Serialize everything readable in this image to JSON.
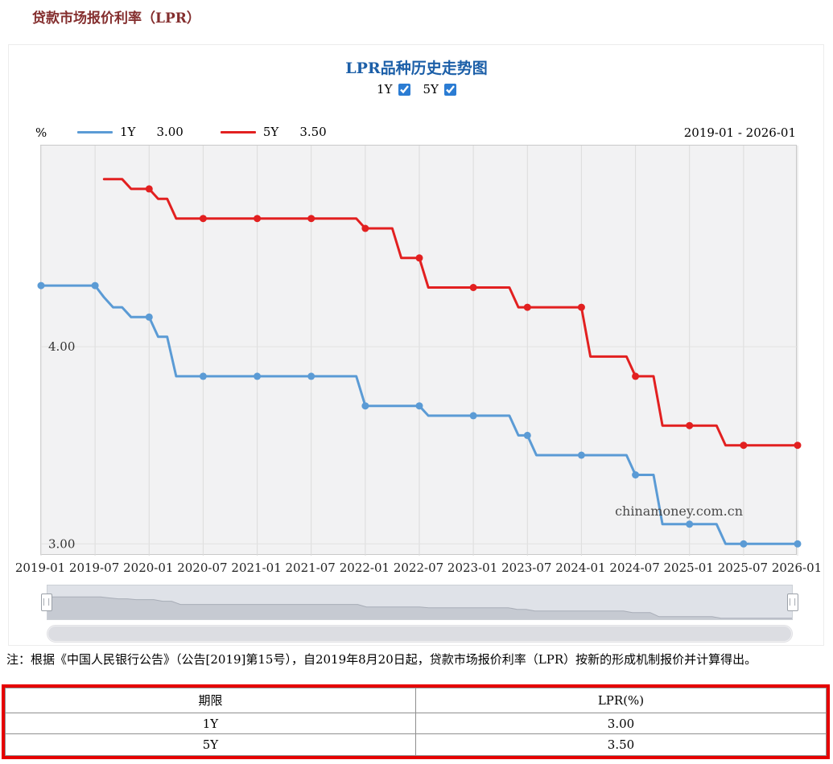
{
  "page": {
    "title": "贷款市场报价利率（LPR）"
  },
  "chart": {
    "title": "LPR品种历史走势图",
    "checkboxes": [
      {
        "label": "1Y",
        "checked": true
      },
      {
        "label": "5Y",
        "checked": true
      }
    ],
    "unit_label": "%",
    "legend": [
      {
        "label": "1Y",
        "value": "3.00",
        "color": "#5b9bd5"
      },
      {
        "label": "5Y",
        "value": "3.50",
        "color": "#e22020"
      }
    ],
    "date_range": "2019-01 - 2026-01",
    "watermark": "chinamoney.com.cn"
  },
  "chart_data": {
    "type": "line",
    "title": "LPR品种历史走势图",
    "x_start": "2019-01",
    "x_end": "2026-01",
    "x_tick_labels": [
      "2019-01",
      "2019-07",
      "2020-01",
      "2020-07",
      "2021-01",
      "2021-07",
      "2022-01",
      "2022-07",
      "2023-01",
      "2023-07",
      "2024-01",
      "2024-07",
      "2025-01",
      "2025-07",
      "2026-01"
    ],
    "y_tick_labels": [
      "3.00",
      "4.00"
    ],
    "y_ticks": [
      3.0,
      4.0
    ],
    "ylim": [
      2.94,
      5.02
    ],
    "ylabel": "%",
    "grid": true,
    "series": [
      {
        "name": "1Y",
        "color": "#5b9bd5",
        "current": 3.0,
        "values": [
          4.31,
          4.31,
          4.31,
          4.31,
          4.31,
          4.31,
          4.31,
          4.25,
          4.2,
          4.2,
          4.15,
          4.15,
          4.15,
          4.05,
          4.05,
          3.85,
          3.85,
          3.85,
          3.85,
          3.85,
          3.85,
          3.85,
          3.85,
          3.85,
          3.85,
          3.85,
          3.85,
          3.85,
          3.85,
          3.85,
          3.85,
          3.85,
          3.85,
          3.85,
          3.85,
          3.85,
          3.7,
          3.7,
          3.7,
          3.7,
          3.7,
          3.7,
          3.7,
          3.65,
          3.65,
          3.65,
          3.65,
          3.65,
          3.65,
          3.65,
          3.65,
          3.65,
          3.65,
          3.55,
          3.55,
          3.45,
          3.45,
          3.45,
          3.45,
          3.45,
          3.45,
          3.45,
          3.45,
          3.45,
          3.45,
          3.45,
          3.35,
          3.35,
          3.35,
          3.1,
          3.1,
          3.1,
          3.1,
          3.1,
          3.1,
          3.1,
          3.0,
          3.0,
          3.0,
          3.0,
          3.0,
          3.0,
          3.0,
          3.0,
          3.0
        ]
      },
      {
        "name": "5Y",
        "color": "#e22020",
        "current": 3.5,
        "values": [
          null,
          null,
          null,
          null,
          null,
          null,
          null,
          4.85,
          4.85,
          4.85,
          4.8,
          4.8,
          4.8,
          4.75,
          4.75,
          4.65,
          4.65,
          4.65,
          4.65,
          4.65,
          4.65,
          4.65,
          4.65,
          4.65,
          4.65,
          4.65,
          4.65,
          4.65,
          4.65,
          4.65,
          4.65,
          4.65,
          4.65,
          4.65,
          4.65,
          4.65,
          4.6,
          4.6,
          4.6,
          4.6,
          4.45,
          4.45,
          4.45,
          4.3,
          4.3,
          4.3,
          4.3,
          4.3,
          4.3,
          4.3,
          4.3,
          4.3,
          4.3,
          4.2,
          4.2,
          4.2,
          4.2,
          4.2,
          4.2,
          4.2,
          4.2,
          3.95,
          3.95,
          3.95,
          3.95,
          3.95,
          3.85,
          3.85,
          3.85,
          3.6,
          3.6,
          3.6,
          3.6,
          3.6,
          3.6,
          3.6,
          3.5,
          3.5,
          3.5,
          3.5,
          3.5,
          3.5,
          3.5,
          3.5,
          3.5
        ]
      }
    ],
    "legend_position": "top-left",
    "marker_interval_months": 6
  },
  "note": "注：根据《中国人民银行公告》（公告[2019]第15号），自2019年8月20日起，贷款市场报价利率（LPR）按新的形成机制报价并计算得出。",
  "table": {
    "headers": [
      "期限",
      "LPR(%)"
    ],
    "rows": [
      [
        "1Y",
        "3.00"
      ],
      [
        "5Y",
        "3.50"
      ]
    ]
  }
}
